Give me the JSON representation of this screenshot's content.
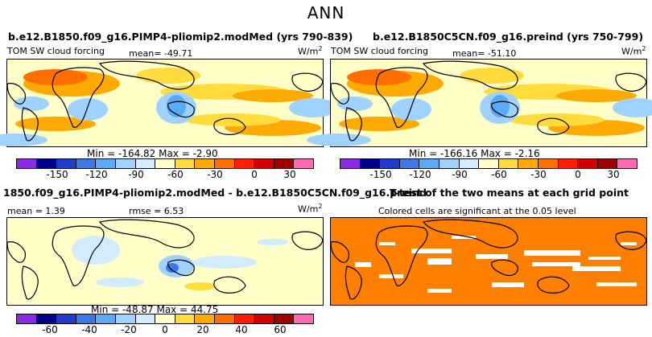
{
  "figure_title": "ANN",
  "panels": [
    {
      "title": "b.e12.B1850.f09_g16.PIMP4-pliomip2.modMed (yrs 790-839)",
      "var_label": "TOM SW cloud forcing",
      "mean_label": "mean= -49.71",
      "units_base": "W/m",
      "units_exp": "2",
      "stats": "Min = -164.82  Max =  -2.90",
      "colorbar_ticks": [
        "-150",
        "-120",
        "-90",
        "-60",
        "-30",
        "0",
        "30"
      ]
    },
    {
      "title": "b.e12.B1850C5CN.f09_g16.preind (yrs 750-799)",
      "var_label": "TOM SW cloud forcing",
      "mean_label": "mean= -51.10",
      "units_base": "W/m",
      "units_exp": "2",
      "stats": "Min = -166.16  Max =  -2.16",
      "colorbar_ticks": [
        "-150",
        "-120",
        "-90",
        "-60",
        "-30",
        "0",
        "30"
      ]
    },
    {
      "title": "1850.f09_g16.PIMP4-pliomip2.modMed - b.e12.B1850C5CN.f09_g16.preind",
      "mean_label": "mean =   1.39",
      "rmse_label": "rmse =   6.53",
      "units_base": "W/m",
      "units_exp": "2",
      "stats": "Min = -48.87  Max =  44.75",
      "colorbar_ticks": [
        "-60",
        "-40",
        "-20",
        "0",
        "20",
        "40",
        "60"
      ]
    },
    {
      "title": "T-test of the two means at each grid point",
      "subtitle": "Colored cells are significant at the 0.05 level"
    }
  ],
  "colors": {
    "palette": [
      "#8a2be2",
      "#00008b",
      "#1e3cc8",
      "#3c78e6",
      "#5aaaf5",
      "#a0d2ff",
      "#d2ebff",
      "#ffffc8",
      "#ffdc3c",
      "#ffaa00",
      "#ff6e00",
      "#ff1e00",
      "#d20000",
      "#a00000",
      "#ff69b4"
    ],
    "ttest_fill": "#ff7f00",
    "land": "#000000"
  },
  "chart_data": [
    {
      "type": "heatmap",
      "title": "b.e12.B1850.f09_g16.PIMP4-pliomip2.modMed (yrs 790-839)",
      "variable": "TOM SW cloud forcing",
      "units": "W/m2",
      "mean": -49.71,
      "min": -164.82,
      "max": -2.9,
      "colorbar_levels": [
        -150,
        -120,
        -90,
        -60,
        -30,
        0,
        30
      ]
    },
    {
      "type": "heatmap",
      "title": "b.e12.B1850C5CN.f09_g16.preind (yrs 750-799)",
      "variable": "TOM SW cloud forcing",
      "units": "W/m2",
      "mean": -51.1,
      "min": -166.16,
      "max": -2.16,
      "colorbar_levels": [
        -150,
        -120,
        -90,
        -60,
        -30,
        0,
        30
      ]
    },
    {
      "type": "heatmap",
      "title": "1850.f09_g16.PIMP4-pliomip2.modMed - b.e12.B1850C5CN.f09_g16.preind",
      "units": "W/m2",
      "mean": 1.39,
      "rmse": 6.53,
      "min": -48.87,
      "max": 44.75,
      "colorbar_levels": [
        -60,
        -40,
        -20,
        0,
        20,
        40,
        60
      ]
    },
    {
      "type": "heatmap",
      "title": "T-test of the two means at each grid point",
      "subtitle": "Colored cells are significant at the 0.05 level"
    }
  ]
}
